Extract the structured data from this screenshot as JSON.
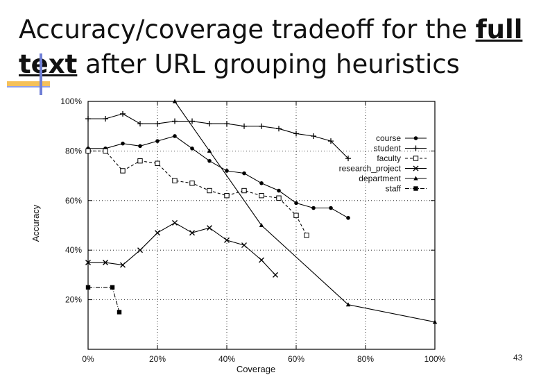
{
  "slide": {
    "title_pre": "Accuracy/coverage tradeoff for the ",
    "title_emphasis": "full text",
    "title_post": " after URL grouping heuristics",
    "page_number": "43"
  },
  "chart_data": {
    "type": "line",
    "title": "",
    "xlabel": "Coverage",
    "ylabel": "Accuracy",
    "xlim": [
      0,
      100
    ],
    "ylim": [
      0,
      100
    ],
    "x_ticks": [
      "0%",
      "20%",
      "40%",
      "60%",
      "80%",
      "100%"
    ],
    "y_ticks": [
      "20%",
      "40%",
      "60%",
      "80%",
      "100%"
    ],
    "grid": true,
    "legend_position": "top-right",
    "series": [
      {
        "name": "course",
        "marker": "dot",
        "dash": "solid",
        "x": [
          0,
          5,
          10,
          15,
          20,
          25,
          30,
          35,
          40,
          45,
          50,
          55,
          60,
          65,
          70,
          75
        ],
        "y": [
          81,
          81,
          83,
          82,
          84,
          86,
          81,
          76,
          72,
          71,
          67,
          64,
          59,
          57,
          57,
          53
        ]
      },
      {
        "name": "student",
        "marker": "plus",
        "dash": "solid",
        "x": [
          0,
          5,
          10,
          15,
          20,
          25,
          30,
          35,
          40,
          45,
          50,
          55,
          60,
          65,
          70,
          75
        ],
        "y": [
          93,
          93,
          95,
          91,
          91,
          92,
          92,
          91,
          91,
          90,
          90,
          89,
          87,
          86,
          84,
          77
        ]
      },
      {
        "name": "faculty",
        "marker": "square",
        "dash": "dashed",
        "x": [
          0,
          5,
          10,
          15,
          20,
          25,
          30,
          35,
          40,
          45,
          50,
          55,
          60,
          63
        ],
        "y": [
          80,
          80,
          72,
          76,
          75,
          68,
          67,
          64,
          62,
          64,
          62,
          61,
          54,
          46
        ]
      },
      {
        "name": "research_project",
        "marker": "x",
        "dash": "solid",
        "x": [
          0,
          5,
          10,
          15,
          20,
          25,
          30,
          35,
          40,
          45,
          50,
          54
        ],
        "y": [
          35,
          35,
          34,
          40,
          47,
          51,
          47,
          49,
          44,
          42,
          36,
          30
        ]
      },
      {
        "name": "department",
        "marker": "triangle",
        "dash": "solid",
        "x": [
          25,
          35,
          50,
          75,
          100
        ],
        "y": [
          100,
          80,
          50,
          18,
          11
        ]
      },
      {
        "name": "staff",
        "marker": "filled-square",
        "dash": "dashdot",
        "x": [
          0,
          7,
          9
        ],
        "y": [
          25,
          25,
          15
        ]
      }
    ]
  }
}
